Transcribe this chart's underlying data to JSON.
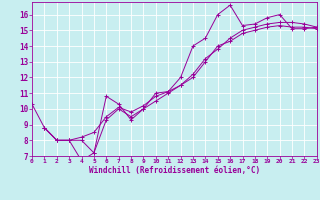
{
  "xlabel": "Windchill (Refroidissement éolien,°C)",
  "bg_color": "#c8eef0",
  "line_color": "#990099",
  "grid_color": "#ffffff",
  "xmin": 0,
  "xmax": 23,
  "ymin": 7,
  "ymax": 16.8,
  "yticks": [
    7,
    8,
    9,
    10,
    11,
    12,
    13,
    14,
    15,
    16
  ],
  "xticks": [
    0,
    1,
    2,
    3,
    4,
    5,
    6,
    7,
    8,
    9,
    10,
    11,
    12,
    13,
    14,
    15,
    16,
    17,
    18,
    19,
    20,
    21,
    22,
    23
  ],
  "line1_x": [
    0,
    1,
    2,
    3,
    4,
    5,
    6,
    7,
    8,
    9,
    10,
    11,
    12,
    13,
    14,
    15,
    16,
    17,
    18,
    19,
    20,
    21,
    22,
    23
  ],
  "line1_y": [
    10.3,
    8.8,
    8.0,
    8.0,
    6.7,
    7.2,
    10.8,
    10.3,
    9.3,
    10.0,
    11.0,
    11.1,
    12.0,
    14.0,
    14.5,
    16.0,
    16.6,
    15.3,
    15.4,
    15.8,
    16.0,
    15.1,
    15.1,
    15.2
  ],
  "line2_x": [
    1,
    2,
    3,
    4,
    5,
    6,
    7,
    8,
    9,
    10,
    11,
    12,
    13,
    14,
    15,
    16,
    17,
    18,
    19,
    20,
    21,
    22,
    23
  ],
  "line2_y": [
    8.8,
    8.0,
    8.0,
    8.2,
    8.5,
    9.5,
    10.1,
    9.8,
    10.2,
    10.8,
    11.1,
    11.5,
    12.2,
    13.2,
    13.8,
    14.5,
    15.0,
    15.2,
    15.4,
    15.5,
    15.5,
    15.4,
    15.2
  ],
  "line3_x": [
    1,
    2,
    3,
    4,
    5,
    6,
    7,
    8,
    9,
    10,
    11,
    12,
    13,
    14,
    15,
    16,
    17,
    18,
    19,
    20,
    21,
    22,
    23
  ],
  "line3_y": [
    8.8,
    8.0,
    8.0,
    8.0,
    7.2,
    9.3,
    10.0,
    9.5,
    10.0,
    10.5,
    11.0,
    11.5,
    12.0,
    13.0,
    14.0,
    14.3,
    14.8,
    15.0,
    15.2,
    15.3,
    15.2,
    15.2,
    15.1
  ]
}
